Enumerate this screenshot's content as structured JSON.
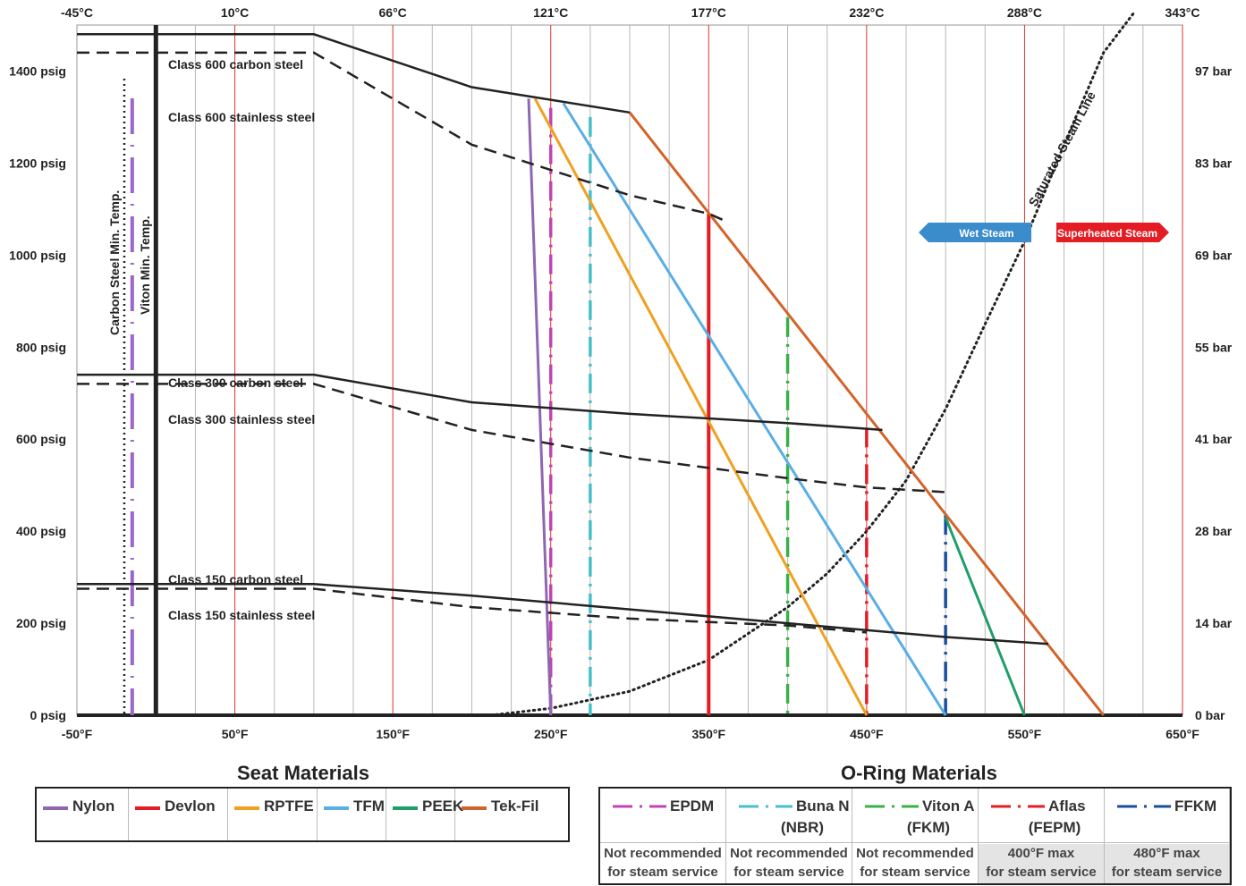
{
  "chart_data": {
    "type": "line",
    "x_axis_f": {
      "ticks": [
        "-50°F",
        "50°F",
        "150°F",
        "250°F",
        "350°F",
        "450°F",
        "550°F",
        "650°F"
      ],
      "range": [
        -50,
        650
      ]
    },
    "x_axis_c": {
      "ticks": [
        "-45°C",
        "10°C",
        "66°C",
        "121°C",
        "177°C",
        "232°C",
        "288°C",
        "343°C"
      ]
    },
    "y_axis_psig": {
      "ticks": [
        "0 psig",
        "200 psig",
        "400 psig",
        "600 psig",
        "800 psig",
        "1000 psig",
        "1200 psig",
        "1400 psig"
      ],
      "range": [
        0,
        1500
      ]
    },
    "y_axis_bar": {
      "ticks": [
        "0 bar",
        "14 bar",
        "28 bar",
        "41 bar",
        "55 bar",
        "69 bar",
        "83 bar",
        "97 bar"
      ]
    },
    "pressure_class_series": [
      {
        "name": "Class 600 carbon steel",
        "style": "solid",
        "x": [
          -50,
          100,
          200,
          300
        ],
        "y": [
          1480,
          1480,
          1365,
          1310
        ]
      },
      {
        "name": "Class 600 stainless steel",
        "style": "dashed",
        "x": [
          -50,
          100,
          200,
          300,
          350,
          360
        ],
        "y": [
          1440,
          1440,
          1240,
          1130,
          1090,
          1075
        ]
      },
      {
        "name": "Class 300 carbon steel",
        "style": "solid",
        "x": [
          -50,
          100,
          200,
          300,
          400,
          460
        ],
        "y": [
          740,
          740,
          680,
          655,
          635,
          620
        ]
      },
      {
        "name": "Class 300 stainless steel",
        "style": "dashed",
        "x": [
          -50,
          100,
          200,
          300,
          400,
          450,
          500
        ],
        "y": [
          720,
          720,
          620,
          560,
          515,
          495,
          485
        ]
      },
      {
        "name": "Class 150 carbon steel",
        "style": "solid",
        "x": [
          -50,
          100,
          200,
          300,
          400,
          500,
          565
        ],
        "y": [
          285,
          285,
          260,
          230,
          200,
          170,
          155
        ]
      },
      {
        "name": "Class 150 stainless steel",
        "style": "dashed",
        "x": [
          -50,
          100,
          200,
          300,
          400,
          450
        ],
        "y": [
          275,
          275,
          235,
          210,
          195,
          180
        ]
      }
    ],
    "seat_materials": [
      {
        "name": "Nylon",
        "color": "#8e67b0",
        "x": [
          236,
          250
        ],
        "y": [
          1340,
          0
        ]
      },
      {
        "name": "Devlon",
        "color": "#e41c23",
        "x": [
          350,
          350
        ],
        "y": [
          1090,
          0
        ]
      },
      {
        "name": "RPTFE",
        "color": "#f0a020",
        "x": [
          240,
          450
        ],
        "y": [
          1340,
          0
        ]
      },
      {
        "name": "TFM",
        "color": "#5aaee6",
        "x": [
          258,
          500
        ],
        "y": [
          1330,
          0
        ]
      },
      {
        "name": "PEEK",
        "color": "#1f9e6a",
        "x": [
          500,
          550
        ],
        "y": [
          430,
          0
        ]
      },
      {
        "name": "Tek-Fil",
        "color": "#d2642a",
        "x": [
          300,
          600
        ],
        "y": [
          1310,
          0
        ]
      }
    ],
    "oring_materials": [
      {
        "name": "EPDM",
        "sub": "",
        "color": "#c044b4",
        "x": 250,
        "ymax": 1320,
        "note": [
          "Not recommended",
          "for steam service"
        ]
      },
      {
        "name": "Buna N",
        "sub": "(NBR)",
        "color": "#46c0c8",
        "x": 275,
        "ymax": 1300,
        "note": [
          "Not recommended",
          "for steam service"
        ]
      },
      {
        "name": "Viton A",
        "sub": "(FKM)",
        "color": "#3ab04a",
        "x": 400,
        "ymax": 865,
        "note": [
          "Not recommended",
          "for steam service"
        ]
      },
      {
        "name": "Aflas",
        "sub": "(FEPM)",
        "color": "#e41c23",
        "x": 450,
        "ymax": 625,
        "note": [
          "400°F max",
          "for steam service"
        ]
      },
      {
        "name": "FFKM",
        "sub": "",
        "color": "#1a4f9e",
        "x": 500,
        "ymax": 435,
        "note": [
          "480°F max",
          "for steam service"
        ]
      }
    ],
    "min_temp_lines": [
      {
        "name": "Carbon Steel Min. Temp.",
        "x": -20,
        "style": "dotted"
      },
      {
        "name": "Viton Min. Temp.",
        "x": -15,
        "style": "dashed-purple"
      }
    ],
    "steam": {
      "line_label": "Saturated Steam Line",
      "wet_label": "Wet Steam",
      "superheated_label": "Superheated Steam",
      "wet_color": "#3a8ccb",
      "superheated_color": "#e41c23",
      "x": [
        212,
        250,
        300,
        350,
        400,
        425,
        450,
        475,
        500,
        525,
        550,
        575,
        600,
        620
      ],
      "y": [
        0,
        15,
        52,
        120,
        235,
        308,
        400,
        510,
        665,
        850,
        1030,
        1240,
        1440,
        1530
      ]
    }
  },
  "seat_title": "Seat Materials",
  "oring_title": "O-Ring Materials"
}
